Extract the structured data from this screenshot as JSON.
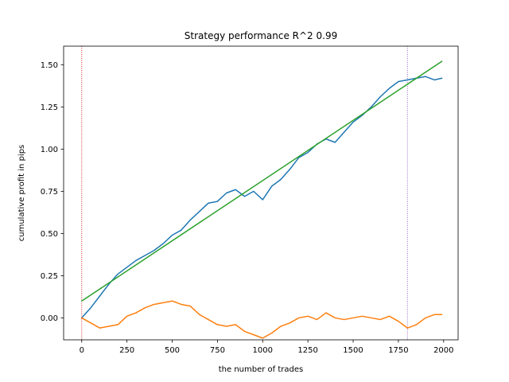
{
  "chart_data": {
    "type": "line",
    "title": "Strategy performance R^2 0.99",
    "xlabel": "the number of trades",
    "ylabel": "cumulative profit in pips",
    "xlim": [
      -100,
      2080
    ],
    "ylim": [
      -0.13,
      1.61
    ],
    "xticks": [
      0,
      250,
      500,
      750,
      1000,
      1250,
      1500,
      1750,
      2000
    ],
    "yticks": [
      0.0,
      0.25,
      0.5,
      0.75,
      1.0,
      1.25,
      1.5
    ],
    "xtick_labels": [
      "0",
      "250",
      "500",
      "750",
      "1000",
      "1250",
      "1500",
      "1750",
      "2000"
    ],
    "ytick_labels": [
      "0.00",
      "0.25",
      "0.50",
      "0.75",
      "1.00",
      "1.25",
      "1.50"
    ],
    "grid": false,
    "series": [
      {
        "color": "#1f77b4",
        "x": [
          0,
          50,
          100,
          150,
          200,
          250,
          300,
          350,
          400,
          450,
          500,
          550,
          600,
          650,
          700,
          750,
          800,
          850,
          900,
          950,
          1000,
          1050,
          1100,
          1150,
          1200,
          1250,
          1300,
          1350,
          1400,
          1450,
          1500,
          1550,
          1600,
          1650,
          1700,
          1750,
          1800,
          1850,
          1900,
          1950,
          1990
        ],
        "y": [
          0.0,
          0.06,
          0.13,
          0.2,
          0.26,
          0.3,
          0.34,
          0.37,
          0.4,
          0.44,
          0.49,
          0.52,
          0.58,
          0.63,
          0.68,
          0.69,
          0.74,
          0.76,
          0.72,
          0.75,
          0.7,
          0.78,
          0.82,
          0.88,
          0.95,
          0.98,
          1.03,
          1.06,
          1.04,
          1.1,
          1.16,
          1.2,
          1.25,
          1.31,
          1.36,
          1.4,
          1.41,
          1.42,
          1.43,
          1.41,
          1.42
        ]
      },
      {
        "color": "#2ca02c",
        "x": [
          0,
          1990
        ],
        "y": [
          0.1,
          1.52
        ]
      },
      {
        "color": "#ff7f0e",
        "x": [
          0,
          50,
          100,
          150,
          200,
          250,
          300,
          350,
          400,
          450,
          500,
          550,
          600,
          650,
          700,
          750,
          800,
          850,
          900,
          950,
          1000,
          1050,
          1100,
          1150,
          1200,
          1250,
          1300,
          1350,
          1400,
          1450,
          1500,
          1550,
          1600,
          1650,
          1700,
          1750,
          1800,
          1850,
          1900,
          1950,
          1990
        ],
        "y": [
          0.0,
          -0.03,
          -0.06,
          -0.05,
          -0.04,
          0.01,
          0.03,
          0.06,
          0.08,
          0.09,
          0.1,
          0.08,
          0.07,
          0.02,
          -0.01,
          -0.04,
          -0.05,
          -0.04,
          -0.08,
          -0.1,
          -0.12,
          -0.09,
          -0.05,
          -0.03,
          0.0,
          0.01,
          -0.01,
          0.03,
          0.0,
          -0.01,
          0.0,
          0.01,
          0.0,
          -0.01,
          0.01,
          -0.02,
          -0.06,
          -0.04,
          0.0,
          0.02,
          0.02
        ]
      }
    ],
    "vlines": [
      {
        "x": 0,
        "color": "#d62728"
      },
      {
        "x": 1800,
        "color": "#9467bd"
      }
    ]
  }
}
